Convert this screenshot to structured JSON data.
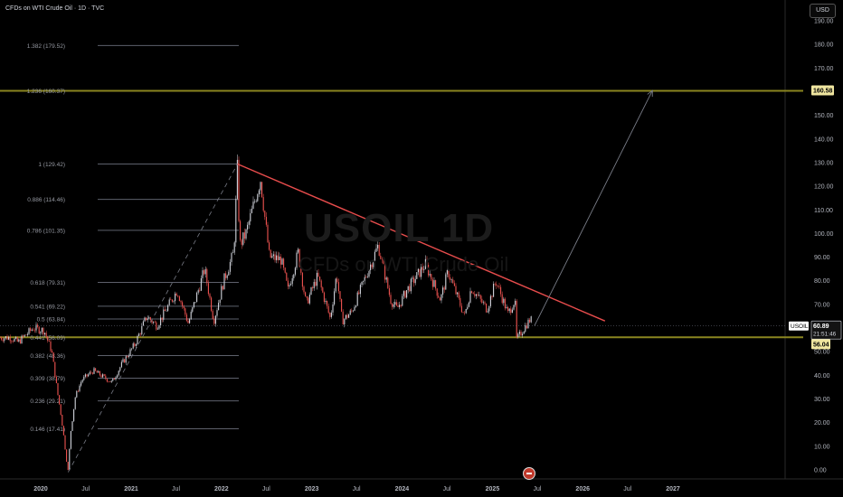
{
  "header": {
    "title": "CFDs on WTI Crude Oil · 1D · TVC",
    "currency": "USD"
  },
  "watermark": {
    "symbol": "USOIL 1D",
    "subtitle": "CFDs on WTI Crude Oil"
  },
  "colors": {
    "up": "#d1d4dc",
    "down": "#ef5350",
    "trendline": "#e74c4c",
    "fib_line": "#5d606b",
    "fib_key": "#8a8520",
    "support": "#8a8520",
    "projection": "#787b86"
  },
  "chart_data": {
    "type": "candlestick",
    "y_axis": {
      "min": 0,
      "max": 190,
      "ticks": [
        0,
        10,
        20,
        30,
        40,
        50,
        60,
        70,
        80,
        90,
        100,
        110,
        120,
        130,
        140,
        150,
        160,
        170,
        180,
        190
      ],
      "tick_labels": [
        "0.00",
        "10.00",
        "20.00",
        "30.00",
        "40.00",
        "50.00",
        "60.00",
        "70.00",
        "80.00",
        "90.00",
        "100.00",
        "110.00",
        "120.00",
        "130.00",
        "140.00",
        "150.00",
        "160.00",
        "170.00",
        "180.00",
        "190.00"
      ]
    },
    "x_axis": {
      "ticks": [
        "2020-01-01",
        "2020-07-01",
        "2021-01-01",
        "2021-07-01",
        "2022-01-01",
        "2022-07-01",
        "2023-01-01",
        "2023-07-01",
        "2024-01-01",
        "2024-07-01",
        "2025-01-01",
        "2025-07-01",
        "2026-01-01",
        "2026-07-01",
        "2027-01-01"
      ],
      "tick_labels": [
        "2020",
        "Jul",
        "2021",
        "Jul",
        "2022",
        "Jul",
        "2023",
        "Jul",
        "2024",
        "Jul",
        "2025",
        "Jul",
        "2026",
        "Jul",
        "2027"
      ]
    },
    "price_path": [
      [
        "2019-09-01",
        56
      ],
      [
        "2019-10-01",
        54
      ],
      [
        "2019-11-01",
        57
      ],
      [
        "2019-12-01",
        60
      ],
      [
        "2020-01-15",
        59
      ],
      [
        "2020-02-15",
        50
      ],
      [
        "2020-03-10",
        32
      ],
      [
        "2020-03-25",
        22
      ],
      [
        "2020-04-21",
        -1
      ],
      [
        "2020-04-30",
        15
      ],
      [
        "2020-05-20",
        31
      ],
      [
        "2020-06-15",
        38
      ],
      [
        "2020-08-01",
        42
      ],
      [
        "2020-10-15",
        37
      ],
      [
        "2020-11-25",
        45
      ],
      [
        "2021-01-15",
        53
      ],
      [
        "2021-03-05",
        65
      ],
      [
        "2021-04-15",
        61
      ],
      [
        "2021-07-06",
        76
      ],
      [
        "2021-08-20",
        62
      ],
      [
        "2021-10-25",
        85
      ],
      [
        "2021-12-01",
        63
      ],
      [
        "2022-01-10",
        80
      ],
      [
        "2022-02-20",
        92
      ],
      [
        "2022-03-07",
        129.4
      ],
      [
        "2022-03-15",
        95
      ],
      [
        "2022-04-10",
        100
      ],
      [
        "2022-06-08",
        123
      ],
      [
        "2022-07-14",
        90
      ],
      [
        "2022-08-30",
        89
      ],
      [
        "2022-09-27",
        76
      ],
      [
        "2022-11-07",
        92
      ],
      [
        "2022-12-09",
        70
      ],
      [
        "2023-01-25",
        82
      ],
      [
        "2023-03-17",
        64
      ],
      [
        "2023-04-12",
        83
      ],
      [
        "2023-05-04",
        63
      ],
      [
        "2023-06-12",
        67
      ],
      [
        "2023-09-27",
        95
      ],
      [
        "2023-11-16",
        72
      ],
      [
        "2023-12-12",
        68
      ],
      [
        "2024-01-20",
        76
      ],
      [
        "2024-04-05",
        87
      ],
      [
        "2024-06-05",
        72
      ],
      [
        "2024-07-05",
        84
      ],
      [
        "2024-09-10",
        65
      ],
      [
        "2024-10-07",
        77
      ],
      [
        "2024-12-10",
        68
      ],
      [
        "2025-01-15",
        80
      ],
      [
        "2025-03-05",
        66
      ],
      [
        "2025-04-02",
        72
      ],
      [
        "2025-04-09",
        55.1
      ],
      [
        "2025-05-15",
        61
      ],
      [
        "2025-06-05",
        64
      ],
      [
        "2025-06-12",
        60.89
      ]
    ],
    "fib_levels": [
      {
        "label": "1.382 (179.52)",
        "value": 179.52,
        "key": false
      },
      {
        "label": "1.236 (160.37)",
        "value": 160.37,
        "key": true
      },
      {
        "label": "1 (129.42)",
        "value": 129.42,
        "key": false
      },
      {
        "label": "0.886 (114.46)",
        "value": 114.46,
        "key": false
      },
      {
        "label": "0.786 (101.35)",
        "value": 101.35,
        "key": false
      },
      {
        "label": "0.618 (79.31)",
        "value": 79.31,
        "key": false
      },
      {
        "label": "0.541 (69.22)",
        "value": 69.22,
        "key": false
      },
      {
        "label": "0.5 (63.84)",
        "value": 63.84,
        "key": false
      },
      {
        "label": "0.441 (56.09)",
        "value": 56.09,
        "key": true
      },
      {
        "label": "0.382 (48.36)",
        "value": 48.36,
        "key": false
      },
      {
        "label": "0.309 (38.79)",
        "value": 38.79,
        "key": false
      },
      {
        "label": "0.236 (29.21)",
        "value": 29.21,
        "key": false
      },
      {
        "label": "0.146 (17.41)",
        "value": 17.41,
        "key": false
      }
    ],
    "trendline": {
      "from": [
        "2022-03-07",
        129.4
      ],
      "to": [
        "2026-04-01",
        63
      ]
    },
    "fib_guide": {
      "from": [
        "2020-04-21",
        -1
      ],
      "to": [
        "2022-03-07",
        129.4
      ]
    },
    "projection": {
      "from": [
        "2025-06-20",
        61
      ],
      "to": [
        "2026-10-10",
        160.5
      ]
    },
    "support_level": 56.04,
    "price_labels": {
      "symbol": "USOIL",
      "last": "60.89",
      "countdown": "21:51:46",
      "target": "160.58",
      "support": "56.04"
    }
  }
}
